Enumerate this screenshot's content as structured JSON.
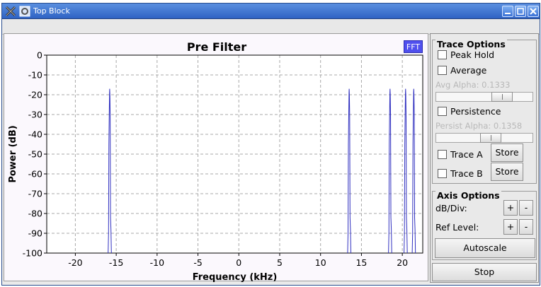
{
  "window": {
    "title": "Top Block"
  },
  "plot": {
    "title": "Pre Filter",
    "fft_badge": "FFT"
  },
  "chart_data": {
    "type": "line",
    "title": "Pre Filter",
    "xlabel": "Frequency (kHz)",
    "ylabel": "Power (dB)",
    "xlim": [
      -23.5,
      22.5
    ],
    "ylim": [
      -100,
      0
    ],
    "x_ticks": [
      -20,
      -15,
      -10,
      -5,
      0,
      5,
      10,
      15,
      20
    ],
    "x_tick_labels": [
      "-20",
      "-15",
      "-10",
      "-5",
      "0",
      "5",
      "10",
      "15",
      "20"
    ],
    "y_ticks": [
      0,
      -10,
      -20,
      -30,
      -40,
      -50,
      -60,
      -70,
      -80,
      -90,
      -100
    ],
    "y_tick_labels": [
      "0",
      "-10",
      "-20",
      "-30",
      "-40",
      "-50",
      "-60",
      "-70",
      "-80",
      "-90",
      "-100"
    ],
    "grid": true,
    "line_color": "#3030c0",
    "series": [
      {
        "peaks": [
          {
            "freq": -15.8,
            "level": -17
          },
          {
            "freq": 13.5,
            "level": -17
          },
          {
            "freq": 18.5,
            "level": -17
          },
          {
            "freq": 20.4,
            "level": -17
          },
          {
            "freq": 21.4,
            "level": -17
          }
        ]
      }
    ]
  },
  "trace_options": {
    "title": "Trace Options",
    "peak_hold": "Peak Hold",
    "average": "Average",
    "avg_alpha": "Avg Alpha: 0.1333",
    "avg_alpha_value": 0.1333,
    "persistence": "Persistence",
    "persist_alpha": "Persist Alpha: 0.1358",
    "persist_alpha_value": 0.1358,
    "trace_a": "Trace A",
    "trace_b": "Trace B",
    "store": "Store"
  },
  "axis_options": {
    "title": "Axis Options",
    "db_div": "dB/Div:",
    "ref_level": "Ref Level:",
    "plus": "+",
    "minus": "-",
    "autoscale": "Autoscale"
  },
  "stop": "Stop",
  "colors": {
    "title_bar": "#3a6fd0",
    "fft_badge": "#5050ee",
    "plot_bg": "#fbf8fd",
    "trace": "#3030c0"
  }
}
